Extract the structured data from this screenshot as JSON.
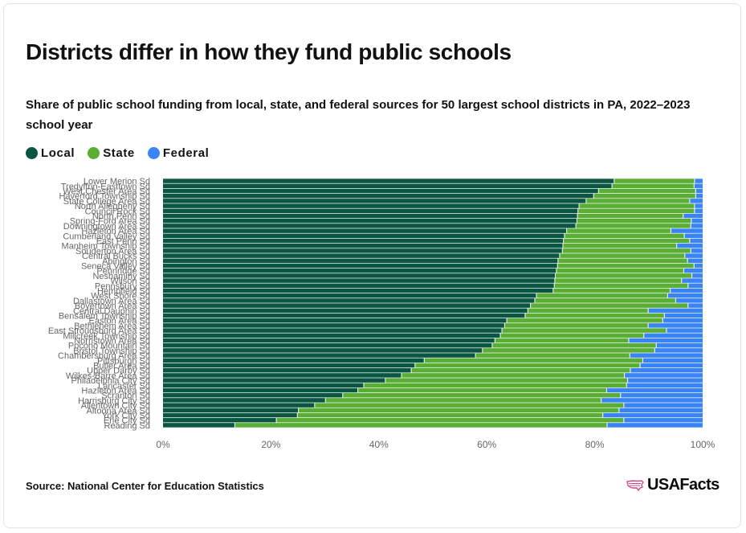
{
  "title": "Districts differ in how they fund public schools",
  "subtitle": "Share of public school funding from local, state, and federal sources for 50 largest school districts in PA, 2022–2023 school year",
  "source": "Source: National Center for Education Statistics",
  "logo": {
    "text": "USAFacts",
    "icon": "usa-map-icon"
  },
  "colors": {
    "local": "#0b5643",
    "state": "#5aad35",
    "federal": "#3b84f6",
    "axis_text": "#666666"
  },
  "legend": [
    {
      "label": "Local",
      "color": "#0b5643"
    },
    {
      "label": "State",
      "color": "#5aad35"
    },
    {
      "label": "Federal",
      "color": "#3b84f6"
    }
  ],
  "chart_data": {
    "type": "bar",
    "orientation": "horizontal",
    "stacked": true,
    "title": "Districts differ in how they fund public schools",
    "xlim": [
      0,
      100
    ],
    "x_ticks": [
      "0%",
      "20%",
      "40%",
      "60%",
      "80%",
      "100%"
    ],
    "grid": false,
    "legend_position": "top-left",
    "categories": [
      "Lower Merion Sd",
      "Tredyffrin-Easttown Sd",
      "West Chester Area Sd",
      "Haverford Township Sd",
      "State College Area Sd",
      "North Allegheny Sd",
      "Council Rock Sd",
      "North Penn Sd",
      "Spring-Ford Area Sd",
      "Downingtown Area Sd",
      "Hazleton Area Sd",
      "Cumberland Valley Sd",
      "East Penn Sd",
      "Manheim Township Sd",
      "Souderton Area Sd",
      "Central Bucks Sd",
      "Abington Sd",
      "Seneca Valley Sd",
      "Pennridge Sd",
      "Neshaminy Sd",
      "Wilson Sd",
      "Pennsbury Sd",
      "Hempfield Sd",
      "West Shore Sd",
      "Dallastown Area Sd",
      "Boyertown Area Sd",
      "Central Dauphin Sd",
      "Bensalem Township Sd",
      "Easton Area Sd",
      "Bethlehem Area Sd",
      "East Stroudsburg Area Sd",
      "Millcreek Township Sd",
      "Norristown Area Sd",
      "Pocono Mountain Sd",
      "Bristol Township Sd",
      "Chambersburg Area Sd",
      "Pittsburgh Sd",
      "Butler Area Sd",
      "Upper Darby Sd",
      "Wilkes-Barre Area Sd",
      "Philadelphia City Sd",
      "Lancaster Sd",
      "Hazleton Area Sd",
      "Scranton Sd",
      "Harrisburg City Sd",
      "Allentown City Sd",
      "Altoona Area Sd",
      "York City Sd",
      "Erie City Sd",
      "Reading Sd"
    ],
    "series": [
      {
        "name": "Local",
        "values": [
          83.6,
          83.2,
          80.7,
          79.8,
          78.4,
          77.1,
          76.9,
          76.8,
          76.7,
          76.5,
          74.8,
          74.4,
          74.2,
          74.1,
          74.0,
          73.5,
          73.2,
          73.1,
          72.9,
          72.7,
          72.6,
          72.5,
          72.3,
          69.2,
          68.9,
          68.1,
          67.6,
          67.1,
          63.7,
          63.3,
          62.8,
          62.5,
          61.5,
          61.0,
          59.2,
          57.9,
          48.4,
          46.7,
          46.0,
          44.2,
          41.2,
          37.2,
          36.1,
          33.3,
          30.1,
          28.1,
          25.1,
          24.9,
          21.0,
          13.3
        ]
      },
      {
        "name": "State",
        "values": [
          14.9,
          15.2,
          18.0,
          18.9,
          19.2,
          21.4,
          21.6,
          19.6,
          21.2,
          21.3,
          19.3,
          22.2,
          23.4,
          21.1,
          23.8,
          23.2,
          24.0,
          25.3,
          23.6,
          25.3,
          23.5,
          24.8,
          21.7,
          24.3,
          26.1,
          29.2,
          22.3,
          25.8,
          28.9,
          26.6,
          30.5,
          26.6,
          24.8,
          30.4,
          31.9,
          28.6,
          40.5,
          41.7,
          40.6,
          41.3,
          44.9,
          48.7,
          46.1,
          51.5,
          51.1,
          57.3,
          59.4,
          56.6,
          64.4,
          69.0
        ]
      },
      {
        "name": "Federal",
        "values": [
          1.5,
          1.6,
          1.3,
          1.3,
          2.4,
          1.5,
          1.5,
          3.6,
          2.1,
          2.2,
          5.9,
          3.4,
          2.4,
          4.8,
          2.2,
          3.3,
          2.8,
          1.6,
          3.5,
          2.0,
          3.9,
          2.7,
          6.0,
          6.5,
          5.0,
          2.7,
          10.1,
          7.1,
          7.4,
          10.1,
          6.7,
          10.9,
          13.7,
          8.6,
          8.9,
          13.5,
          11.1,
          11.6,
          13.4,
          14.5,
          13.9,
          14.1,
          17.8,
          15.2,
          18.8,
          14.6,
          15.5,
          18.5,
          14.6,
          17.7
        ]
      }
    ]
  }
}
